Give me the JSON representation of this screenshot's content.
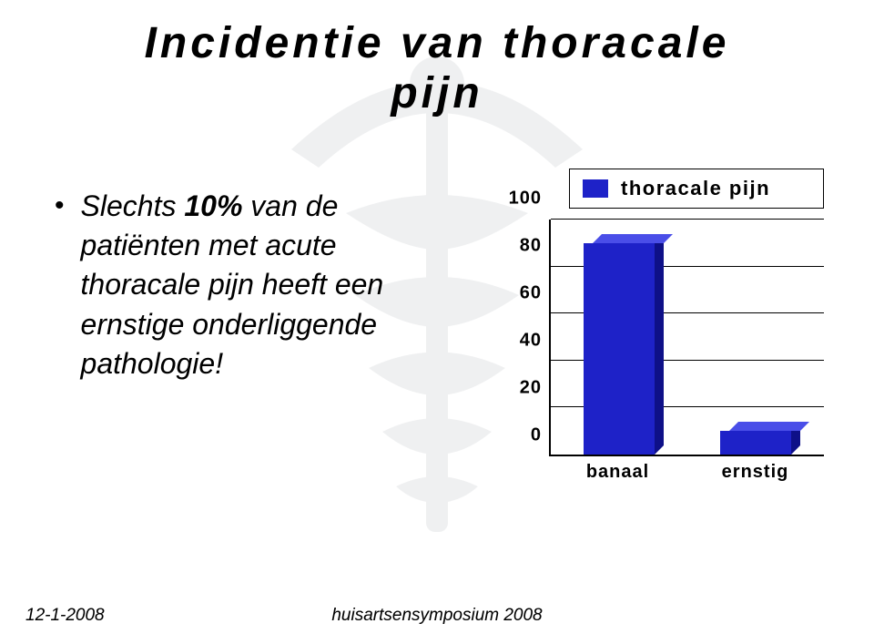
{
  "title_line1": "Incidentie van thoracale",
  "title_line2": "pijn",
  "bullet": {
    "emph": "10%",
    "prefix": "Slechts ",
    "rest": " van de patiënten met acute thoracale pijn heeft een ernstige onderliggende pathologie!"
  },
  "chart": {
    "type": "bar",
    "legend_label": "thoracale pijn",
    "series_color": "#1e22c8",
    "series_color_top": "#4a4ee8",
    "series_color_side": "#0e1088",
    "background": "#ffffff",
    "grid_color": "#000000",
    "ylim": [
      0,
      100
    ],
    "ytick_step": 20,
    "yticks": [
      0,
      20,
      40,
      60,
      80,
      100
    ],
    "categories": [
      "banaal",
      "ernstig"
    ],
    "values": [
      90,
      10
    ],
    "bar_width_pct": 26
  },
  "footer": {
    "date": "12-1-2008",
    "center": "huisartsensymposium 2008"
  },
  "colors": {
    "text": "#000000",
    "shadow": "#bdbdbd"
  }
}
